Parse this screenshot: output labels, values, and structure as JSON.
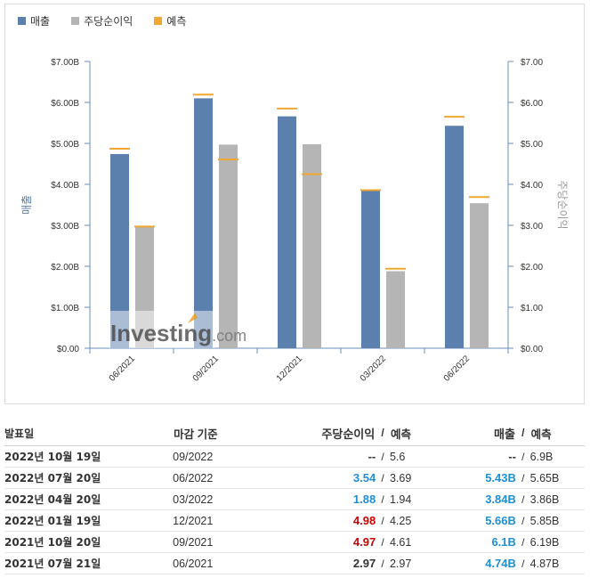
{
  "legend": {
    "revenue": "매출",
    "eps": "주당순이익",
    "forecast": "예측"
  },
  "colors": {
    "revenue": "#5b80ad",
    "eps": "#b5b5b5",
    "forecast": "#f0a830",
    "axis": "#6b8fba",
    "positive": "#1f8fd6",
    "negative": "#cc0000"
  },
  "chart_data": {
    "type": "bar",
    "categories": [
      "06/2021",
      "09/2021",
      "12/2021",
      "03/2022",
      "06/2022"
    ],
    "series": [
      {
        "name": "매출",
        "axis": "left",
        "values": [
          4.74,
          6.1,
          5.66,
          3.84,
          5.43
        ]
      },
      {
        "name": "주당순이익",
        "axis": "right",
        "values": [
          2.97,
          4.97,
          4.98,
          1.88,
          3.54
        ]
      }
    ],
    "forecasts": [
      {
        "name": "예측",
        "of": "매출",
        "values": [
          4.87,
          6.19,
          5.85,
          3.86,
          5.65
        ]
      },
      {
        "name": "예측",
        "of": "주당순이익",
        "values": [
          2.97,
          4.61,
          4.25,
          1.94,
          3.69
        ]
      }
    ],
    "ylabel": "매출",
    "y2label": "주당순이익",
    "ylim": [
      0,
      7
    ],
    "y2lim": [
      0,
      7
    ],
    "yticks": [
      "$0.00",
      "$1.00B",
      "$2.00B",
      "$3.00B",
      "$4.00B",
      "$5.00B",
      "$6.00B",
      "$7.00B"
    ],
    "y2ticks": [
      "$0.00",
      "$1.00",
      "$2.00",
      "$3.00",
      "$4.00",
      "$5.00",
      "$6.00",
      "$7.00"
    ],
    "watermark": "Investing.com",
    "grid": false,
    "legend_position": "top-left"
  },
  "table": {
    "headers": {
      "date": "발표일",
      "period": "마감 기준",
      "eps": "주당순이익",
      "eps_fc": "예측",
      "rev": "매출",
      "rev_fc": "예측",
      "sep": "/"
    },
    "rows": [
      {
        "date": "2022년 10월 19일",
        "period": "09/2022",
        "eps": "--",
        "eps_fc": "5.6",
        "rev": "--",
        "rev_fc": "6.9B",
        "eps_tone": "neutral",
        "rev_tone": "neutral"
      },
      {
        "date": "2022년 07월 20일",
        "period": "06/2022",
        "eps": "3.54",
        "eps_fc": "3.69",
        "rev": "5.43B",
        "rev_fc": "5.65B",
        "eps_tone": "pos",
        "rev_tone": "pos"
      },
      {
        "date": "2022년 04월 20일",
        "period": "03/2022",
        "eps": "1.88",
        "eps_fc": "1.94",
        "rev": "3.84B",
        "rev_fc": "3.86B",
        "eps_tone": "pos",
        "rev_tone": "pos"
      },
      {
        "date": "2022년 01월 19일",
        "period": "12/2021",
        "eps": "4.98",
        "eps_fc": "4.25",
        "rev": "5.66B",
        "rev_fc": "5.85B",
        "eps_tone": "neg",
        "rev_tone": "pos"
      },
      {
        "date": "2021년 10월 20일",
        "period": "09/2021",
        "eps": "4.97",
        "eps_fc": "4.61",
        "rev": "6.1B",
        "rev_fc": "6.19B",
        "eps_tone": "neg",
        "rev_tone": "pos"
      },
      {
        "date": "2021년 07월 21일",
        "period": "06/2021",
        "eps": "2.97",
        "eps_fc": "2.97",
        "rev": "4.74B",
        "rev_fc": "4.87B",
        "eps_tone": "neutral",
        "rev_tone": "pos"
      }
    ]
  }
}
